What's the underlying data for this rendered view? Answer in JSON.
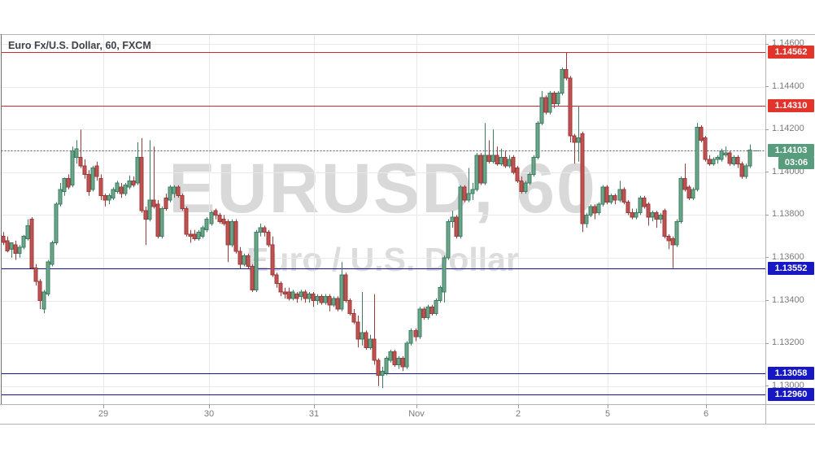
{
  "header": {
    "title": "Euro Fx/U.S. Dollar, 60, FXCM"
  },
  "watermark": {
    "line1": "EURUSD, 60",
    "line2": "Euro / U.S. Dollar"
  },
  "price_axis": {
    "tick_labels": [
      "1.14600",
      "1.14400",
      "1.14200",
      "1.14000",
      "1.13800",
      "1.13600",
      "1.13400",
      "1.13200",
      "1.13000"
    ],
    "badges": [
      {
        "label": "1.14562",
        "price": 1.14562,
        "type": "level",
        "color_key": "red"
      },
      {
        "label": "1.14310",
        "price": 1.1431,
        "type": "level",
        "color_key": "red"
      },
      {
        "label": "1.14103",
        "price": 1.14103,
        "type": "last-price",
        "color_key": "green"
      },
      {
        "label": "03:06",
        "type": "bar-countdown",
        "color_key": "green"
      },
      {
        "label": "1.13552",
        "price": 1.13552,
        "type": "level",
        "color_key": "blue"
      },
      {
        "label": "1.13058",
        "price": 1.13058,
        "type": "level",
        "color_key": "blue"
      },
      {
        "label": "1.12960",
        "price": 1.1296,
        "type": "level",
        "color_key": "blue"
      }
    ]
  },
  "time_axis": {
    "ticks": [
      {
        "label": "29",
        "index": 24.6
      },
      {
        "label": "30",
        "index": 50.5
      },
      {
        "label": "31",
        "index": 76.2
      },
      {
        "label": "Nov",
        "index": 101.3
      },
      {
        "label": "2",
        "index": 126.2
      },
      {
        "label": "5",
        "index": 148.1
      },
      {
        "label": "6",
        "index": 172.2
      }
    ]
  },
  "levels": [
    {
      "price": 1.14562,
      "style": "solid",
      "color_key": "line_red"
    },
    {
      "price": 1.1431,
      "style": "solid",
      "color_key": "line_red"
    },
    {
      "price": 1.14103,
      "style": "dotted",
      "color_key": "line_dotted"
    },
    {
      "price": 1.13552,
      "style": "solid",
      "color_key": "line_blue"
    },
    {
      "price": 1.13058,
      "style": "solid",
      "color_key": "line_blue"
    },
    {
      "price": 1.1296,
      "style": "solid",
      "color_key": "line_blue"
    }
  ],
  "colors": {
    "up_fill": "#6da58a",
    "up_border": "#3c7e62",
    "down_fill": "#c05252",
    "down_border": "#9d3a3a",
    "badge_red": "#e3342c",
    "badge_blue": "#1717c3",
    "badge_green": "#579c7c",
    "line_red": "#cc2b2b",
    "line_blue": "#151591",
    "line_dotted": "#565964",
    "grid": "#e9e9e9",
    "frame": "#b3b3b6",
    "left_border": "#6f6f6f",
    "axis_text": "#7b7b7b",
    "last_price_marker": "#3c7e62"
  },
  "chart_data": {
    "type": "candlestick",
    "symbol": "EURUSD",
    "interval": "60",
    "source": "FXCM",
    "title": "Euro Fx/U.S. Dollar, 60, FXCM",
    "y_axis": {
      "min": 1.12915,
      "max": 1.14646,
      "grid_step": 0.002,
      "grid": true
    },
    "x_tick_labels": [
      "29",
      "30",
      "31",
      "Nov",
      "2",
      "5",
      "6"
    ],
    "last_price": 1.14103,
    "bar_countdown": "03:06",
    "ohlc": [
      [
        1.137,
        1.1372,
        1.1366,
        1.13672
      ],
      [
        1.1368,
        1.137,
        1.13625,
        1.13632
      ],
      [
        1.1364,
        1.13672,
        1.136,
        1.1367
      ],
      [
        1.1366,
        1.1368,
        1.1359,
        1.1362
      ],
      [
        1.1362,
        1.1366,
        1.136,
        1.1365
      ],
      [
        1.1365,
        1.13705,
        1.1364,
        1.137
      ],
      [
        1.1369,
        1.1378,
        1.1368,
        1.1375
      ],
      [
        1.1378,
        1.1379,
        1.13545,
        1.13552
      ],
      [
        1.13552,
        1.1357,
        1.1347,
        1.1349
      ],
      [
        1.1349,
        1.135,
        1.1336,
        1.134
      ],
      [
        1.1336,
        1.1345,
        1.1334,
        1.1344
      ],
      [
        1.1343,
        1.1359,
        1.1342,
        1.1358
      ],
      [
        1.1357,
        1.1368,
        1.1356,
        1.1367
      ],
      [
        1.1367,
        1.1386,
        1.1366,
        1.1385
      ],
      [
        1.1385,
        1.1395,
        1.1384,
        1.1392
      ],
      [
        1.1391,
        1.13975,
        1.1389,
        1.1397
      ],
      [
        1.1397,
        1.1399,
        1.1392,
        1.1393
      ],
      [
        1.1394,
        1.1412,
        1.1393,
        1.141
      ],
      [
        1.1407,
        1.1415,
        1.1404,
        1.1411
      ],
      [
        1.1407,
        1.142,
        1.1402,
        1.1403
      ],
      [
        1.1403,
        1.1406,
        1.1397,
        1.1399
      ],
      [
        1.1399,
        1.1401,
        1.1389,
        1.1391
      ],
      [
        1.1392,
        1.1403,
        1.1391,
        1.1402
      ],
      [
        1.1403,
        1.1405,
        1.1396,
        1.1398
      ],
      [
        1.1397,
        1.1399,
        1.1387,
        1.1389
      ],
      [
        1.1389,
        1.139,
        1.1384,
        1.1387
      ],
      [
        1.1387,
        1.139,
        1.1385,
        1.1389
      ],
      [
        1.1388,
        1.1393,
        1.1387,
        1.1392
      ],
      [
        1.1391,
        1.1396,
        1.139,
        1.1395
      ],
      [
        1.1393,
        1.1395,
        1.1388,
        1.139
      ],
      [
        1.139,
        1.1395,
        1.1389,
        1.1394
      ],
      [
        1.1393,
        1.13985,
        1.1392,
        1.1396
      ],
      [
        1.1396,
        1.1398,
        1.1393,
        1.1394
      ],
      [
        1.1395,
        1.1414,
        1.1394,
        1.1407
      ],
      [
        1.1407,
        1.1416,
        1.1381,
        1.1382
      ],
      [
        1.1382,
        1.1384,
        1.1366,
        1.1378
      ],
      [
        1.1378,
        1.1415,
        1.1377,
        1.1387
      ],
      [
        1.1387,
        1.1412,
        1.1383,
        1.1384
      ],
      [
        1.1385,
        1.1387,
        1.1369,
        1.137
      ],
      [
        1.137,
        1.1384,
        1.1369,
        1.1383
      ],
      [
        1.1388,
        1.139,
        1.1382,
        1.1383
      ],
      [
        1.1387,
        1.1394,
        1.1386,
        1.1393
      ],
      [
        1.139,
        1.1394,
        1.1388,
        1.1393
      ],
      [
        1.1393,
        1.1394,
        1.1388,
        1.1389
      ],
      [
        1.1389,
        1.139,
        1.1382,
        1.1383
      ],
      [
        1.1383,
        1.1384,
        1.137,
        1.1371
      ],
      [
        1.1371,
        1.1373,
        1.1367,
        1.137
      ],
      [
        1.1371,
        1.1373,
        1.1368,
        1.1369
      ],
      [
        1.1369,
        1.1373,
        1.1368,
        1.1372
      ],
      [
        1.137,
        1.1375,
        1.1369,
        1.1374
      ],
      [
        1.1373,
        1.1379,
        1.1372,
        1.1378
      ],
      [
        1.1376,
        1.1382,
        1.1375,
        1.1381
      ],
      [
        1.1382,
        1.1383,
        1.1378,
        1.138
      ],
      [
        1.138,
        1.1381,
        1.1376,
        1.1377
      ],
      [
        1.1378,
        1.138,
        1.1375,
        1.1376
      ],
      [
        1.1377,
        1.1378,
        1.1358,
        1.1366
      ],
      [
        1.1366,
        1.1378,
        1.1365,
        1.1377
      ],
      [
        1.1377,
        1.1378,
        1.1362,
        1.1363
      ],
      [
        1.1363,
        1.1365,
        1.1355,
        1.1357
      ],
      [
        1.1357,
        1.1362,
        1.1356,
        1.1361
      ],
      [
        1.1361,
        1.1362,
        1.1355,
        1.1356
      ],
      [
        1.1356,
        1.1357,
        1.1344,
        1.1345
      ],
      [
        1.1345,
        1.1373,
        1.1344,
        1.1372
      ],
      [
        1.1372,
        1.1376,
        1.137,
        1.1374
      ],
      [
        1.1374,
        1.1375,
        1.137,
        1.1372
      ],
      [
        1.1372,
        1.1373,
        1.1365,
        1.1366
      ],
      [
        1.1366,
        1.137,
        1.1351,
        1.1352
      ],
      [
        1.1352,
        1.1353,
        1.1346,
        1.1348
      ],
      [
        1.1348,
        1.1349,
        1.1342,
        1.1344
      ],
      [
        1.1344,
        1.1346,
        1.1341,
        1.1343
      ],
      [
        1.1344,
        1.1346,
        1.134,
        1.1341
      ],
      [
        1.1341,
        1.1345,
        1.134,
        1.1344
      ],
      [
        1.1343,
        1.1344,
        1.1339,
        1.1341
      ],
      [
        1.1342,
        1.1345,
        1.134,
        1.1344
      ],
      [
        1.1344,
        1.1345,
        1.1339,
        1.1341
      ],
      [
        1.1341,
        1.1344,
        1.1339,
        1.1343
      ],
      [
        1.1343,
        1.1344,
        1.1337,
        1.134
      ],
      [
        1.134,
        1.1343,
        1.1338,
        1.1342
      ],
      [
        1.1342,
        1.1343,
        1.1338,
        1.1339
      ],
      [
        1.1339,
        1.1343,
        1.1338,
        1.1342
      ],
      [
        1.1342,
        1.1343,
        1.1335,
        1.1338
      ],
      [
        1.1338,
        1.1342,
        1.1337,
        1.1341
      ],
      [
        1.1341,
        1.1342,
        1.1335,
        1.1336
      ],
      [
        1.1336,
        1.1358,
        1.1335,
        1.1352
      ],
      [
        1.1352,
        1.1353,
        1.1339,
        1.134
      ],
      [
        1.134,
        1.1341,
        1.1333,
        1.1334
      ],
      [
        1.1334,
        1.1336,
        1.1329,
        1.133
      ],
      [
        1.133,
        1.1333,
        1.1318,
        1.1322
      ],
      [
        1.1322,
        1.1344,
        1.1319,
        1.1325
      ],
      [
        1.1325,
        1.1326,
        1.1317,
        1.1318
      ],
      [
        1.1318,
        1.1324,
        1.1317,
        1.1322
      ],
      [
        1.1322,
        1.1343,
        1.131,
        1.1312
      ],
      [
        1.1312,
        1.1313,
        1.13,
        1.1305
      ],
      [
        1.1305,
        1.1309,
        1.1299,
        1.1307
      ],
      [
        1.1306,
        1.1314,
        1.1305,
        1.1313
      ],
      [
        1.1312,
        1.1317,
        1.1311,
        1.1316
      ],
      [
        1.1316,
        1.1317,
        1.1309,
        1.131
      ],
      [
        1.131,
        1.1314,
        1.1308,
        1.1313
      ],
      [
        1.1313,
        1.1314,
        1.1307,
        1.1309
      ],
      [
        1.1309,
        1.1321,
        1.1308,
        1.132
      ],
      [
        1.132,
        1.1327,
        1.1319,
        1.1326
      ],
      [
        1.1326,
        1.1327,
        1.1321,
        1.1323
      ],
      [
        1.1323,
        1.1337,
        1.1322,
        1.1336
      ],
      [
        1.1336,
        1.1337,
        1.1331,
        1.1332
      ],
      [
        1.1332,
        1.1338,
        1.1331,
        1.1337
      ],
      [
        1.1337,
        1.1338,
        1.1333,
        1.1334
      ],
      [
        1.1334,
        1.1341,
        1.1333,
        1.134
      ],
      [
        1.134,
        1.1347,
        1.1339,
        1.1346
      ],
      [
        1.1344,
        1.1361,
        1.1339,
        1.136
      ],
      [
        1.136,
        1.1378,
        1.1359,
        1.1377
      ],
      [
        1.1377,
        1.1382,
        1.1374,
        1.1379
      ],
      [
        1.1379,
        1.138,
        1.1369,
        1.137
      ],
      [
        1.137,
        1.1394,
        1.1369,
        1.1393
      ],
      [
        1.1393,
        1.1394,
        1.1386,
        1.1387
      ],
      [
        1.1387,
        1.1402,
        1.1386,
        1.139
      ],
      [
        1.139,
        1.1395,
        1.1387,
        1.1392
      ],
      [
        1.1392,
        1.1409,
        1.1391,
        1.1408
      ],
      [
        1.1408,
        1.1409,
        1.1394,
        1.1395
      ],
      [
        1.1395,
        1.1423,
        1.1394,
        1.1408
      ],
      [
        1.1408,
        1.1415,
        1.1404,
        1.1405
      ],
      [
        1.1405,
        1.142,
        1.1404,
        1.1408
      ],
      [
        1.1408,
        1.1412,
        1.1403,
        1.1404
      ],
      [
        1.1404,
        1.1411,
        1.1403,
        1.1407
      ],
      [
        1.1407,
        1.141,
        1.1402,
        1.1403
      ],
      [
        1.1403,
        1.1408,
        1.1402,
        1.1406
      ],
      [
        1.1407,
        1.1408,
        1.1399,
        1.14
      ],
      [
        1.1402,
        1.1403,
        1.1395,
        1.1396
      ],
      [
        1.1396,
        1.1398,
        1.139,
        1.1391
      ],
      [
        1.1391,
        1.1396,
        1.139,
        1.1395
      ],
      [
        1.1395,
        1.14,
        1.1394,
        1.1399
      ],
      [
        1.1399,
        1.1408,
        1.1398,
        1.1407
      ],
      [
        1.1407,
        1.1424,
        1.1406,
        1.1423
      ],
      [
        1.1423,
        1.1438,
        1.1422,
        1.1435
      ],
      [
        1.1435,
        1.1436,
        1.1427,
        1.1428
      ],
      [
        1.1428,
        1.1438,
        1.1427,
        1.1437
      ],
      [
        1.1437,
        1.1438,
        1.143,
        1.1432
      ],
      [
        1.1432,
        1.1438,
        1.1431,
        1.1437
      ],
      [
        1.1437,
        1.1449,
        1.1436,
        1.1448
      ],
      [
        1.1448,
        1.14562,
        1.1443,
        1.1444
      ],
      [
        1.1444,
        1.1445,
        1.1414,
        1.1417
      ],
      [
        1.1417,
        1.1418,
        1.1404,
        1.1414
      ],
      [
        1.1414,
        1.1431,
        1.1405,
        1.1416
      ],
      [
        1.1418,
        1.1419,
        1.1372,
        1.1376
      ],
      [
        1.1376,
        1.1381,
        1.1374,
        1.138
      ],
      [
        1.138,
        1.1385,
        1.1379,
        1.1384
      ],
      [
        1.1384,
        1.1385,
        1.1378,
        1.1381
      ],
      [
        1.1381,
        1.1386,
        1.138,
        1.1385
      ],
      [
        1.1385,
        1.1394,
        1.1384,
        1.1393
      ],
      [
        1.1393,
        1.1394,
        1.1385,
        1.1386
      ],
      [
        1.1386,
        1.139,
        1.1385,
        1.1389
      ],
      [
        1.1389,
        1.139,
        1.1385,
        1.1387
      ],
      [
        1.1387,
        1.1396,
        1.1386,
        1.1392
      ],
      [
        1.1392,
        1.1393,
        1.1385,
        1.1386
      ],
      [
        1.1386,
        1.1387,
        1.138,
        1.1381
      ],
      [
        1.1381,
        1.1383,
        1.1378,
        1.1379
      ],
      [
        1.1379,
        1.1383,
        1.1378,
        1.1381
      ],
      [
        1.1381,
        1.1389,
        1.138,
        1.1388
      ],
      [
        1.1388,
        1.1389,
        1.1383,
        1.1384
      ],
      [
        1.1385,
        1.1386,
        1.1375,
        1.1379
      ],
      [
        1.1379,
        1.1382,
        1.1377,
        1.1381
      ],
      [
        1.1381,
        1.1382,
        1.1374,
        1.1378
      ],
      [
        1.1378,
        1.1381,
        1.1376,
        1.138
      ],
      [
        1.1382,
        1.1383,
        1.1369,
        1.137
      ],
      [
        1.137,
        1.1371,
        1.1364,
        1.1368
      ],
      [
        1.1369,
        1.137,
        1.13552,
        1.1366
      ],
      [
        1.1366,
        1.1378,
        1.1365,
        1.1377
      ],
      [
        1.1377,
        1.1398,
        1.1376,
        1.1397
      ],
      [
        1.1397,
        1.1404,
        1.1391,
        1.1392
      ],
      [
        1.1393,
        1.1394,
        1.1387,
        1.1388
      ],
      [
        1.1388,
        1.1393,
        1.1387,
        1.1392
      ],
      [
        1.1392,
        1.1423,
        1.1391,
        1.1421
      ],
      [
        1.1421,
        1.1422,
        1.1414,
        1.1415
      ],
      [
        1.1416,
        1.1417,
        1.1405,
        1.1406
      ],
      [
        1.1406,
        1.1408,
        1.1403,
        1.1404
      ],
      [
        1.1404,
        1.1407,
        1.1403,
        1.1406
      ],
      [
        1.1406,
        1.1408,
        1.1404,
        1.1407
      ],
      [
        1.1406,
        1.1411,
        1.1405,
        1.141
      ],
      [
        1.1408,
        1.1412,
        1.1407,
        1.1409
      ],
      [
        1.1409,
        1.141,
        1.1403,
        1.1404
      ],
      [
        1.1404,
        1.1408,
        1.1403,
        1.1407
      ],
      [
        1.1407,
        1.1408,
        1.1402,
        1.1404
      ],
      [
        1.1404,
        1.1405,
        1.1397,
        1.1398
      ],
      [
        1.1398,
        1.1404,
        1.1397,
        1.1403
      ],
      [
        1.1403,
        1.1413,
        1.1402,
        1.14103
      ]
    ]
  }
}
